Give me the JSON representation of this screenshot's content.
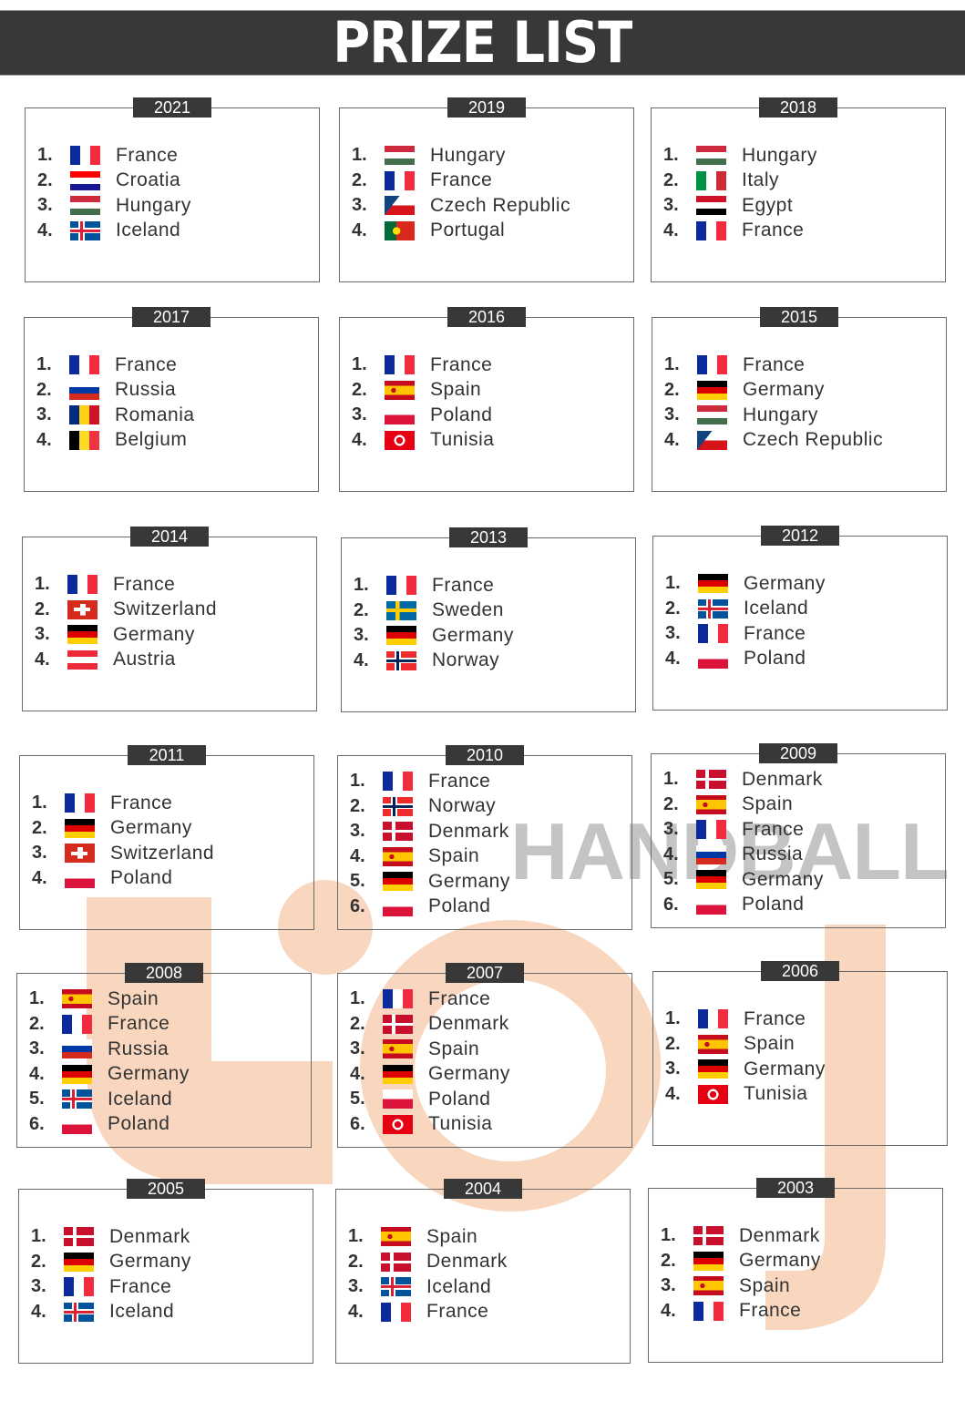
{
  "header": {
    "title": "PRIZE LIST"
  },
  "watermark": {
    "text": "HANDBALL",
    "logo_color": "#f7c9aa"
  },
  "colors": {
    "header_bg": "#383838",
    "border": "#6a6a6a",
    "text": "#333333"
  },
  "cards": [
    {
      "year": "2021",
      "rows": [
        [
          "1.",
          "France"
        ],
        [
          "2.",
          "Croatia"
        ],
        [
          "3.",
          "Hungary"
        ],
        [
          "4.",
          "Iceland"
        ]
      ]
    },
    {
      "year": "2019",
      "rows": [
        [
          "1.",
          "Hungary"
        ],
        [
          "2.",
          "France"
        ],
        [
          "3.",
          "Czech Republic"
        ],
        [
          "4.",
          "Portugal"
        ]
      ]
    },
    {
      "year": "2018",
      "rows": [
        [
          "1.",
          "Hungary"
        ],
        [
          "2.",
          "Italy"
        ],
        [
          "3.",
          "Egypt"
        ],
        [
          "4.",
          "France"
        ]
      ]
    },
    {
      "year": "2017",
      "rows": [
        [
          "1.",
          "France"
        ],
        [
          "2.",
          "Russia"
        ],
        [
          "3.",
          "Romania"
        ],
        [
          "4.",
          "Belgium"
        ]
      ]
    },
    {
      "year": "2016",
      "rows": [
        [
          "1.",
          "France"
        ],
        [
          "2.",
          "Spain"
        ],
        [
          "3.",
          "Poland"
        ],
        [
          "4.",
          "Tunisia"
        ]
      ]
    },
    {
      "year": "2015",
      "rows": [
        [
          "1.",
          "France"
        ],
        [
          "2.",
          "Germany"
        ],
        [
          "3.",
          "Hungary"
        ],
        [
          "4.",
          "Czech Republic"
        ]
      ]
    },
    {
      "year": "2014",
      "rows": [
        [
          "1.",
          "France"
        ],
        [
          "2.",
          "Switzerland"
        ],
        [
          "3.",
          "Germany"
        ],
        [
          "4.",
          "Austria"
        ]
      ]
    },
    {
      "year": "2013",
      "rows": [
        [
          "1.",
          "France"
        ],
        [
          "2.",
          "Sweden"
        ],
        [
          "3.",
          "Germany"
        ],
        [
          "4.",
          "Norway"
        ]
      ]
    },
    {
      "year": "2012",
      "rows": [
        [
          "1.",
          "Germany"
        ],
        [
          "2.",
          "Iceland"
        ],
        [
          "3.",
          "France"
        ],
        [
          "4.",
          "Poland"
        ]
      ]
    },
    {
      "year": "2011",
      "rows": [
        [
          "1.",
          "France"
        ],
        [
          "2.",
          "Germany"
        ],
        [
          "3.",
          "Switzerland"
        ],
        [
          "4.",
          "Poland"
        ]
      ]
    },
    {
      "year": "2010",
      "rows": [
        [
          "1.",
          "France"
        ],
        [
          "2.",
          "Norway"
        ],
        [
          "3.",
          "Denmark"
        ],
        [
          "4.",
          "Spain"
        ],
        [
          "5.",
          "Germany"
        ],
        [
          "6.",
          "Poland"
        ]
      ]
    },
    {
      "year": "2009",
      "rows": [
        [
          "1.",
          "Denmark"
        ],
        [
          "2.",
          "Spain"
        ],
        [
          "3.",
          "France"
        ],
        [
          "4.",
          "Russia"
        ],
        [
          "5.",
          "Germany"
        ],
        [
          "6.",
          "Poland"
        ]
      ]
    },
    {
      "year": "2008",
      "rows": [
        [
          "1.",
          "Spain"
        ],
        [
          "2.",
          "France"
        ],
        [
          "3.",
          "Russia"
        ],
        [
          "4.",
          "Germany"
        ],
        [
          "5.",
          "Iceland"
        ],
        [
          "6.",
          "Poland"
        ]
      ]
    },
    {
      "year": "2007",
      "rows": [
        [
          "1.",
          "France"
        ],
        [
          "2.",
          "Denmark"
        ],
        [
          "3.",
          "Spain"
        ],
        [
          "4.",
          "Germany"
        ],
        [
          "5.",
          "Poland"
        ],
        [
          "6.",
          "Tunisia"
        ]
      ]
    },
    {
      "year": "2006",
      "rows": [
        [
          "1.",
          "France"
        ],
        [
          "2.",
          "Spain"
        ],
        [
          "3.",
          "Germany"
        ],
        [
          "4.",
          "Tunisia"
        ]
      ]
    },
    {
      "year": "2005",
      "rows": [
        [
          "1.",
          "Denmark"
        ],
        [
          "2.",
          "Germany"
        ],
        [
          "3.",
          "France"
        ],
        [
          "4.",
          "Iceland"
        ]
      ]
    },
    {
      "year": "2004",
      "rows": [
        [
          "1.",
          "Spain"
        ],
        [
          "2.",
          "Denmark"
        ],
        [
          "3.",
          "Iceland"
        ],
        [
          "4.",
          "France"
        ]
      ]
    },
    {
      "year": "2003",
      "rows": [
        [
          "1.",
          "Denmark"
        ],
        [
          "2.",
          "Germany"
        ],
        [
          "3.",
          "Spain"
        ],
        [
          "4.",
          "France"
        ]
      ]
    }
  ]
}
